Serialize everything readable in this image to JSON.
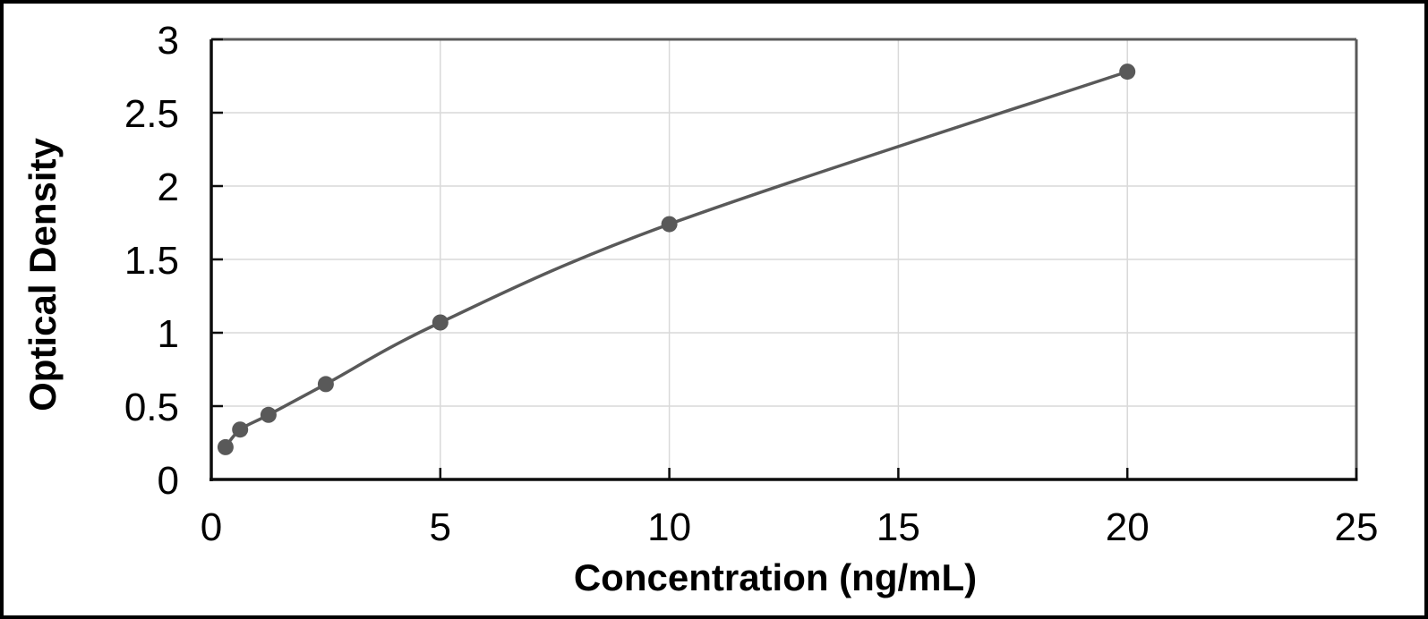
{
  "chart_data": {
    "type": "line",
    "title": "",
    "xlabel": "Concentration (ng/mL)",
    "ylabel": "Optical Density",
    "xlim": [
      0,
      25
    ],
    "ylim": [
      0,
      3
    ],
    "xticks": [
      0,
      5,
      10,
      15,
      20,
      25
    ],
    "yticks": [
      0,
      0.5,
      1,
      1.5,
      2,
      2.5,
      3
    ],
    "grid": true,
    "legend_position": "none",
    "series": [
      {
        "x": [
          0.31,
          0.63,
          1.25,
          2.5,
          5,
          10,
          20
        ],
        "y": [
          0.22,
          0.34,
          0.44,
          0.65,
          1.07,
          1.74,
          2.78
        ],
        "marker": "circle",
        "line_style": "smooth"
      }
    ],
    "colors": {
      "series": "#595959",
      "gridline": "#d9d9d9",
      "axis": "#0d0d0d",
      "plot_border": "#595959",
      "text": "#000000",
      "background": "#ffffff",
      "frame": "#000000"
    }
  }
}
